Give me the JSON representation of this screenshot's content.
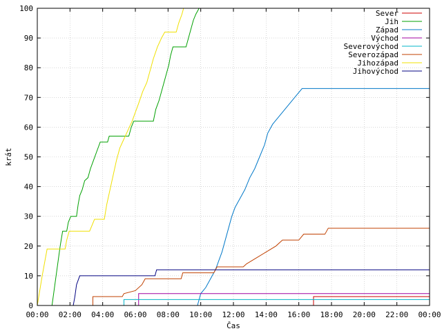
{
  "chart_data": {
    "type": "line",
    "title": "",
    "xlabel": "Čas",
    "ylabel": "krát",
    "xlim": [
      0,
      24
    ],
    "ylim": [
      0,
      100
    ],
    "grid": true,
    "legend_position": "top-right",
    "x_tick_labels": [
      "00:00",
      "02:00",
      "04:00",
      "06:00",
      "08:00",
      "10:00",
      "12:00",
      "14:00",
      "16:00",
      "18:00",
      "20:00",
      "22:00",
      "00:00"
    ],
    "y_ticks": [
      0,
      10,
      20,
      30,
      40,
      50,
      60,
      70,
      80,
      90,
      100
    ],
    "series": [
      {
        "name": "Sever",
        "color": "#cc0000",
        "points": [
          [
            0,
            0
          ],
          [
            16.9,
            0
          ],
          [
            16.9,
            3
          ],
          [
            24,
            3
          ]
        ]
      },
      {
        "name": "Jih",
        "color": "#00a000",
        "points": [
          [
            0,
            0
          ],
          [
            0.9,
            0
          ],
          [
            1.0,
            4
          ],
          [
            1.1,
            8
          ],
          [
            1.2,
            12
          ],
          [
            1.3,
            16
          ],
          [
            1.4,
            20
          ],
          [
            1.55,
            25
          ],
          [
            1.8,
            25
          ],
          [
            1.9,
            28
          ],
          [
            2.05,
            30
          ],
          [
            2.4,
            30
          ],
          [
            2.5,
            34
          ],
          [
            2.6,
            37
          ],
          [
            2.75,
            39
          ],
          [
            2.9,
            42
          ],
          [
            3.1,
            43
          ],
          [
            3.25,
            46
          ],
          [
            3.45,
            49
          ],
          [
            3.65,
            52
          ],
          [
            3.85,
            55
          ],
          [
            4.3,
            55
          ],
          [
            4.4,
            57
          ],
          [
            5.6,
            57
          ],
          [
            5.75,
            60
          ],
          [
            5.9,
            62
          ],
          [
            7.1,
            62
          ],
          [
            7.25,
            66
          ],
          [
            7.45,
            69
          ],
          [
            7.6,
            72
          ],
          [
            7.75,
            75
          ],
          [
            7.9,
            78
          ],
          [
            8.05,
            81
          ],
          [
            8.15,
            84
          ],
          [
            8.3,
            87
          ],
          [
            9.1,
            87
          ],
          [
            9.25,
            90
          ],
          [
            9.4,
            93
          ],
          [
            9.55,
            96
          ],
          [
            9.7,
            98
          ],
          [
            9.9,
            100
          ]
        ]
      },
      {
        "name": "Západ",
        "color": "#0078c8",
        "points": [
          [
            0,
            0
          ],
          [
            9.8,
            0
          ],
          [
            10.0,
            4
          ],
          [
            10.3,
            6
          ],
          [
            10.6,
            9
          ],
          [
            10.9,
            12
          ],
          [
            11.1,
            15
          ],
          [
            11.3,
            18
          ],
          [
            11.5,
            22
          ],
          [
            11.7,
            26
          ],
          [
            11.9,
            30
          ],
          [
            12.1,
            33
          ],
          [
            12.4,
            36
          ],
          [
            12.7,
            39
          ],
          [
            13.0,
            43
          ],
          [
            13.3,
            46
          ],
          [
            13.6,
            50
          ],
          [
            13.9,
            54
          ],
          [
            14.1,
            58
          ],
          [
            14.4,
            61
          ],
          [
            14.7,
            63
          ],
          [
            15.0,
            65
          ],
          [
            15.3,
            67
          ],
          [
            15.6,
            69
          ],
          [
            15.9,
            71
          ],
          [
            16.2,
            73
          ],
          [
            24,
            73
          ]
        ]
      },
      {
        "name": "Východ",
        "color": "#a000a0",
        "points": [
          [
            0,
            0
          ],
          [
            6.2,
            0
          ],
          [
            6.2,
            4
          ],
          [
            24,
            4
          ]
        ]
      },
      {
        "name": "Severovýchod",
        "color": "#00b4c8",
        "points": [
          [
            0,
            0
          ],
          [
            5.3,
            0
          ],
          [
            5.3,
            2
          ],
          [
            24,
            2
          ]
        ]
      },
      {
        "name": "Severozápad",
        "color": "#c04000",
        "points": [
          [
            0,
            0
          ],
          [
            3.4,
            0
          ],
          [
            3.4,
            3
          ],
          [
            5.2,
            3
          ],
          [
            5.3,
            4
          ],
          [
            6.0,
            5
          ],
          [
            6.4,
            7
          ],
          [
            6.6,
            9
          ],
          [
            8.8,
            9
          ],
          [
            8.9,
            11
          ],
          [
            10.8,
            11
          ],
          [
            11.0,
            13
          ],
          [
            12.6,
            13
          ],
          [
            12.8,
            14
          ],
          [
            13.4,
            16
          ],
          [
            14.0,
            18
          ],
          [
            14.6,
            20
          ],
          [
            15.0,
            22
          ],
          [
            16.0,
            22
          ],
          [
            16.3,
            24
          ],
          [
            17.6,
            24
          ],
          [
            17.8,
            26
          ],
          [
            24,
            26
          ]
        ]
      },
      {
        "name": "Jihozápad",
        "color": "#f0e000",
        "points": [
          [
            0,
            0
          ],
          [
            0.3,
            10
          ],
          [
            0.6,
            19
          ],
          [
            1.7,
            19
          ],
          [
            1.8,
            22
          ],
          [
            1.95,
            25
          ],
          [
            3.2,
            25
          ],
          [
            3.35,
            27
          ],
          [
            3.5,
            29
          ],
          [
            4.1,
            29
          ],
          [
            4.25,
            34
          ],
          [
            4.45,
            39
          ],
          [
            4.65,
            44
          ],
          [
            4.85,
            49
          ],
          [
            5.05,
            53
          ],
          [
            5.3,
            56
          ],
          [
            5.55,
            59
          ],
          [
            5.8,
            62
          ],
          [
            6.0,
            65
          ],
          [
            6.2,
            68
          ],
          [
            6.45,
            72
          ],
          [
            6.7,
            75
          ],
          [
            6.9,
            79
          ],
          [
            7.1,
            83
          ],
          [
            7.35,
            87
          ],
          [
            7.6,
            90
          ],
          [
            7.8,
            92
          ],
          [
            8.5,
            92
          ],
          [
            8.65,
            95
          ],
          [
            8.85,
            98
          ],
          [
            8.95,
            100
          ]
        ]
      },
      {
        "name": "Jihovýchod",
        "color": "#000080",
        "points": [
          [
            0,
            0
          ],
          [
            2.2,
            0
          ],
          [
            2.3,
            3
          ],
          [
            2.4,
            7
          ],
          [
            2.6,
            10
          ],
          [
            7.2,
            10
          ],
          [
            7.3,
            12
          ],
          [
            24,
            12
          ]
        ]
      }
    ]
  }
}
